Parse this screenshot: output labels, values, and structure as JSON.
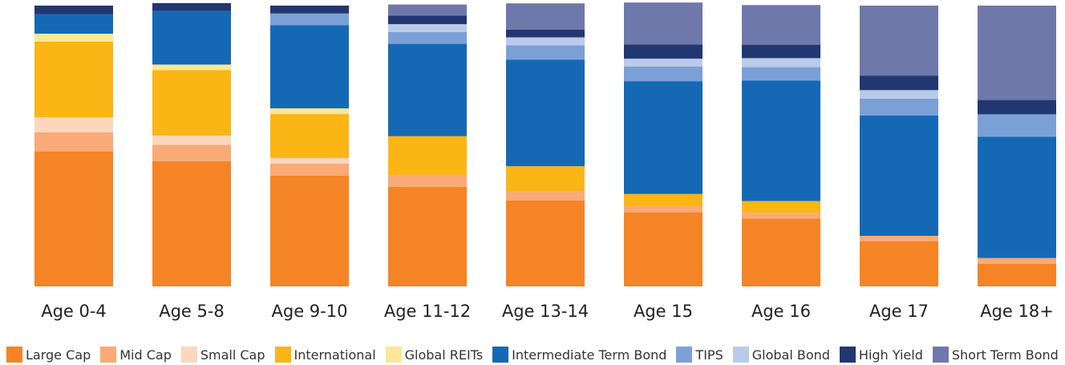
{
  "chart_data": {
    "type": "bar",
    "stacked": true,
    "normalized": true,
    "categories": [
      "Age 0-4",
      "Age 5-8",
      "Age 9-10",
      "Age 11-12",
      "Age 13-14",
      "Age 15",
      "Age 16",
      "Age 17",
      "Age 18+"
    ],
    "series": [
      {
        "name": "Large Cap",
        "color": "#f58426",
        "values": [
          48.1,
          44.6,
          39.5,
          35.5,
          30.6,
          26.4,
          24.2,
          16.0,
          8.1
        ]
      },
      {
        "name": "Mid Cap",
        "color": "#f9aa76",
        "values": [
          6.8,
          5.8,
          4.2,
          4.2,
          3.4,
          2.3,
          2.0,
          2.0,
          2.0
        ]
      },
      {
        "name": "Small Cap",
        "color": "#fcd7bd",
        "values": [
          5.3,
          3.3,
          2.0,
          0,
          0,
          0,
          0,
          0,
          0
        ]
      },
      {
        "name": "International",
        "color": "#fbb514",
        "values": [
          27.0,
          23.3,
          15.7,
          13.8,
          8.8,
          4.2,
          4.2,
          0,
          0
        ]
      },
      {
        "name": "Global REITs",
        "color": "#fee697",
        "values": [
          2.8,
          2.0,
          2.0,
          0,
          0,
          0,
          0,
          0,
          0
        ]
      },
      {
        "name": "Intermediate Term Bond",
        "color": "#1569b4",
        "values": [
          7.0,
          19.1,
          29.6,
          32.9,
          38.0,
          40.2,
          42.9,
          42.9,
          43.2
        ]
      },
      {
        "name": "TIPS",
        "color": "#7ba0d6",
        "values": [
          0,
          0,
          4.2,
          4.2,
          5.1,
          5.2,
          4.8,
          6.0,
          8.0
        ]
      },
      {
        "name": "Global Bond",
        "color": "#b9cbe8",
        "values": [
          0,
          0,
          0,
          2.8,
          2.8,
          2.8,
          3.2,
          3.0,
          0
        ]
      },
      {
        "name": "High Yield",
        "color": "#223671",
        "values": [
          3.0,
          2.8,
          2.8,
          3.1,
          2.8,
          5.1,
          4.8,
          5.1,
          5.1
        ]
      },
      {
        "name": "Short Term Bond",
        "color": "#6f78ab",
        "values": [
          0,
          0,
          0,
          3.9,
          9.3,
          14.9,
          14.1,
          25.0,
          33.6
        ]
      }
    ],
    "ylim": [
      0,
      100
    ]
  }
}
